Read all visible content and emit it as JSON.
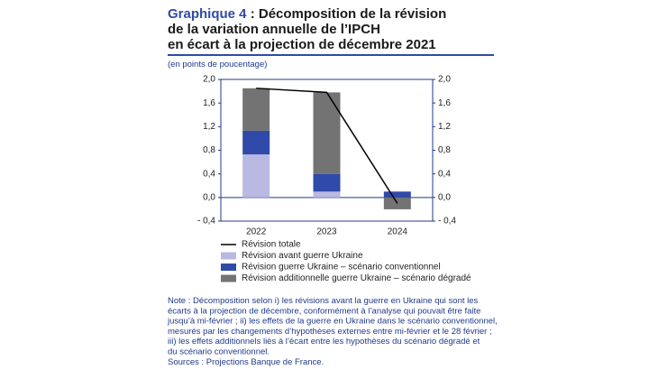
{
  "chart_data": {
    "type": "bar",
    "number": "Graphique 4",
    "title": [
      ": Décomposition de la révision",
      "de la variation annuelle de l’IPCH",
      "en écart à la projection de décembre 2021"
    ],
    "subtitle": "(en points de poucentage)",
    "categories": [
      "2022",
      "2023",
      "2024"
    ],
    "series": [
      {
        "name": "Révision avant guerre Ukraine",
        "color": "#b9b9e2",
        "values": [
          0.73,
          0.1,
          0
        ]
      },
      {
        "name": "Révision guerre Ukraine – scénario conventionnel",
        "color": "#2f4aa8",
        "values": [
          0.4,
          0.3,
          0.1
        ]
      },
      {
        "name": "Révision additionnelle guerre Ukraine – scénario dégradé",
        "color": "#737373",
        "values": [
          0.72,
          1.38,
          -0.2
        ]
      },
      {
        "name": "Révision totale",
        "type": "line",
        "color": "#000000",
        "values": [
          1.85,
          1.78,
          -0.1
        ]
      }
    ],
    "ylim": [
      -0.4,
      2.0
    ],
    "yticks": [
      {
        "value": -0.4,
        "label": "- 0,4"
      },
      {
        "value": 0,
        "label": "0,0"
      },
      {
        "value": 0.4,
        "label": "0,4"
      },
      {
        "value": 0.8,
        "label": "0,8"
      },
      {
        "value": 1.2,
        "label": "1,2"
      },
      {
        "value": 1.6,
        "label": "1,6"
      },
      {
        "value": 2.0,
        "label": "2,0"
      }
    ],
    "y2lim": [
      -0.4,
      2.0
    ],
    "y2ticks": [
      {
        "value": -0.4,
        "label": "- 0,4"
      },
      {
        "value": 0,
        "label": "0,0"
      },
      {
        "value": 0.4,
        "label": "0,4"
      },
      {
        "value": 0.8,
        "label": "0,8"
      },
      {
        "value": 1.2,
        "label": "1,2"
      },
      {
        "value": 1.6,
        "label": "1,6"
      },
      {
        "value": 2.0,
        "label": "2,0"
      }
    ],
    "note": [
      "Note : Décomposition selon i) les révisions avant la guerre en Ukraine qui sont les",
      "écarts à la projection de décembre, conformément à l’analyse qui pouvait être faite",
      "jusqu’à mi-février ; ii) les effets de la guerre en Ukraine dans le scénario conventionnel,",
      "mesurés par les changements d’hypothèses externes entre mi-février et le 28 février ;",
      "iii) les effets additionnels liés à l’écart entre les hypothèses du scénario dégradé et",
      "du scénario conventionnel."
    ],
    "source": "Sources : Projections Banque de France."
  }
}
